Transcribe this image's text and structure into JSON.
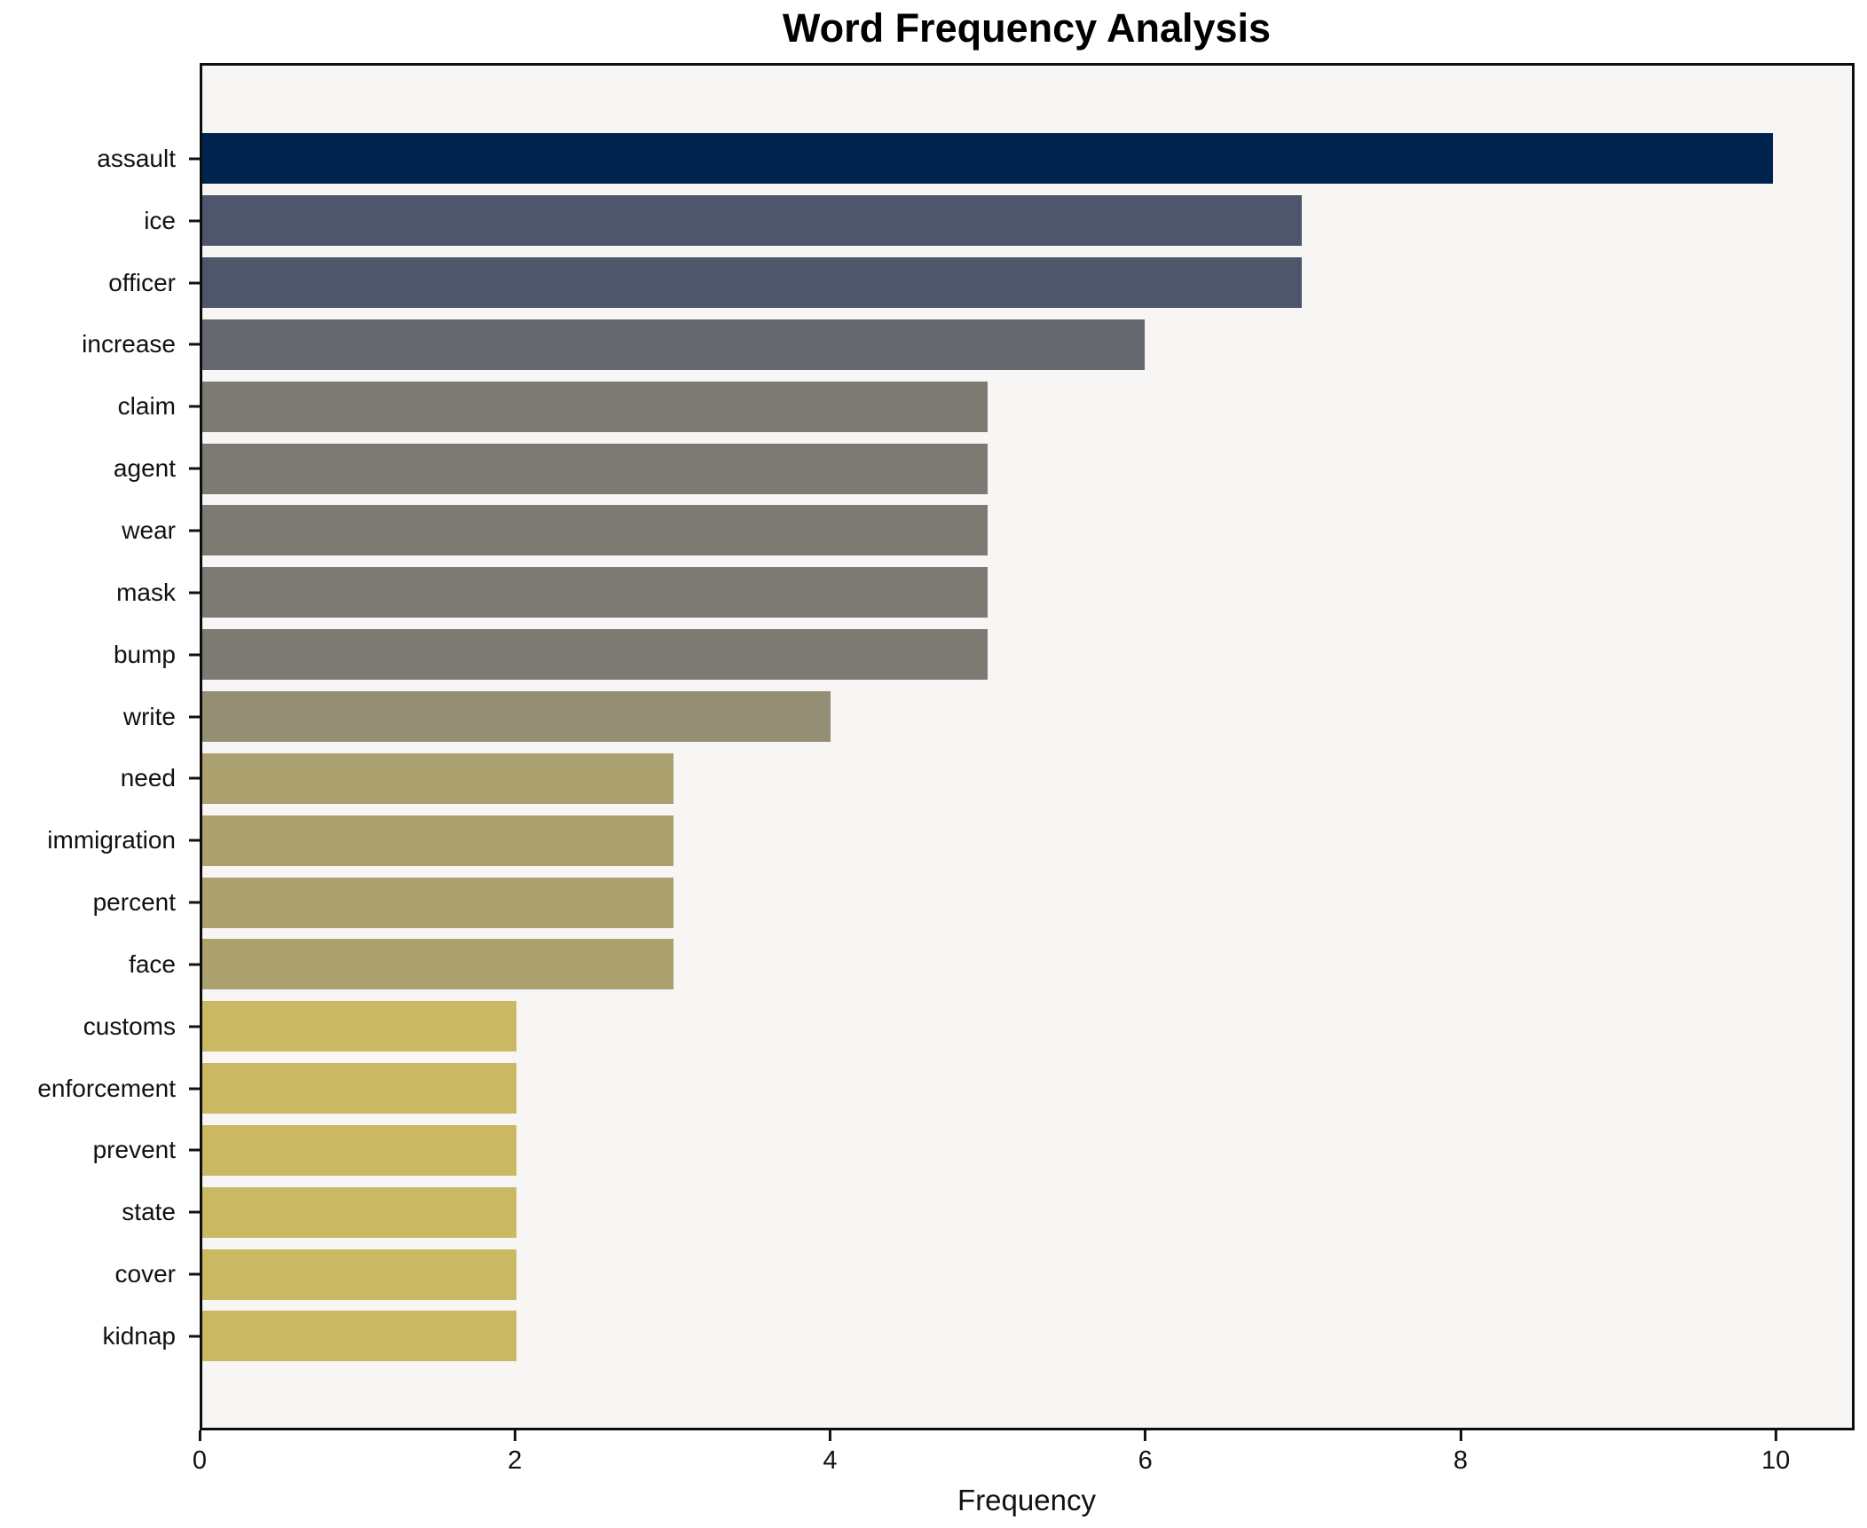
{
  "figure": {
    "background": "#ffffff",
    "plot_background": "#f7f6f5",
    "spine_color": "#0d0d0d",
    "text_color": "#111111"
  },
  "chart_data": {
    "type": "bar",
    "orientation": "horizontal",
    "title": "Word Frequency Analysis",
    "xlabel": "Frequency",
    "ylabel": "",
    "grid": false,
    "legend": null,
    "xlim": [
      0,
      10.5
    ],
    "xticks": [
      0,
      2,
      4,
      6,
      8,
      10
    ],
    "categories": [
      "assault",
      "ice",
      "officer",
      "increase",
      "claim",
      "agent",
      "wear",
      "mask",
      "bump",
      "write",
      "need",
      "immigration",
      "percent",
      "face",
      "customs",
      "enforcement",
      "prevent",
      "state",
      "cover",
      "kidnap"
    ],
    "values": [
      10,
      7,
      7,
      6,
      5,
      5,
      5,
      5,
      5,
      4,
      3,
      3,
      3,
      3,
      2,
      2,
      2,
      2,
      2,
      2
    ],
    "bar_colors": [
      "#00224e",
      "#4d566b",
      "#4d566b",
      "#65686f",
      "#7b7a73",
      "#7b7a73",
      "#7b7a73",
      "#7b7a73",
      "#7b7a73",
      "#948e74",
      "#aba16e",
      "#aba16e",
      "#aba16e",
      "#aba16e",
      "#cab863",
      "#cab863",
      "#cab863",
      "#cab863",
      "#cab863",
      "#cab863"
    ]
  }
}
